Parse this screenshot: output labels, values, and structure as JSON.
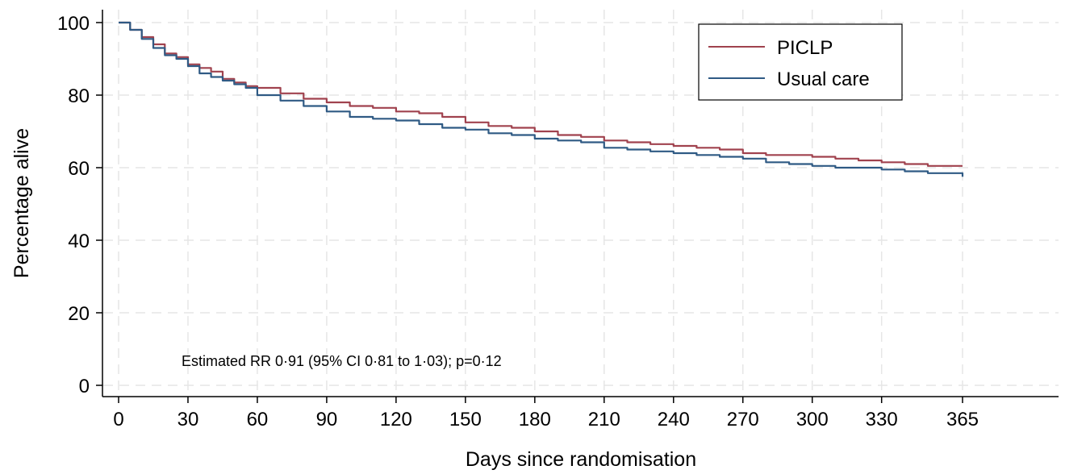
{
  "chart_data": {
    "type": "line",
    "xlabel": "Days since randomisation",
    "ylabel": "Percentage alive",
    "xlim": [
      0,
      365
    ],
    "ylim": [
      0,
      100
    ],
    "x_ticks": [
      "0",
      "30",
      "60",
      "90",
      "120",
      "150",
      "180",
      "210",
      "240",
      "270",
      "300",
      "330",
      "365"
    ],
    "y_ticks": [
      "0",
      "20",
      "40",
      "60",
      "80",
      "100"
    ],
    "grid": true,
    "legend_position": "top-right",
    "annotation": "Estimated RR 0·91 (95% CI 0·81 to 1·03); p=0·12",
    "series": [
      {
        "name": "PICLP",
        "color": "#a0424e",
        "x": [
          0,
          5,
          10,
          15,
          20,
          25,
          30,
          35,
          40,
          45,
          50,
          55,
          60,
          70,
          80,
          90,
          100,
          110,
          120,
          130,
          140,
          150,
          160,
          170,
          180,
          190,
          200,
          210,
          220,
          230,
          240,
          250,
          260,
          270,
          280,
          290,
          300,
          310,
          320,
          330,
          340,
          350,
          365
        ],
        "values": [
          100,
          98,
          96,
          94,
          91.5,
          90.5,
          88.5,
          87.5,
          86.5,
          84.5,
          83.5,
          82.5,
          82,
          80.5,
          79,
          78,
          77,
          76.5,
          75.5,
          75,
          74,
          72.5,
          71.5,
          71,
          70,
          69,
          68.5,
          67.5,
          67,
          66.5,
          66,
          65.5,
          65,
          64,
          63.5,
          63.5,
          63,
          62.5,
          62,
          61.5,
          61,
          60.5,
          60.5
        ]
      },
      {
        "name": "Usual care",
        "color": "#2f5a84",
        "x": [
          0,
          5,
          10,
          15,
          20,
          25,
          30,
          35,
          40,
          45,
          50,
          55,
          60,
          70,
          80,
          90,
          100,
          110,
          120,
          130,
          140,
          150,
          160,
          170,
          180,
          190,
          200,
          210,
          220,
          230,
          240,
          250,
          260,
          270,
          280,
          290,
          300,
          310,
          320,
          330,
          340,
          350,
          365
        ],
        "values": [
          100,
          98,
          95.5,
          93,
          91,
          90,
          88,
          86,
          85,
          84,
          83,
          82,
          80,
          78.5,
          77,
          75.5,
          74,
          73.5,
          73,
          72,
          71,
          70.5,
          69.5,
          69,
          68,
          67.5,
          67,
          65.5,
          65,
          64.5,
          64,
          63.5,
          63,
          62.5,
          61.5,
          61,
          60.5,
          60,
          60,
          59.5,
          59,
          58.5,
          57.5
        ]
      }
    ]
  }
}
